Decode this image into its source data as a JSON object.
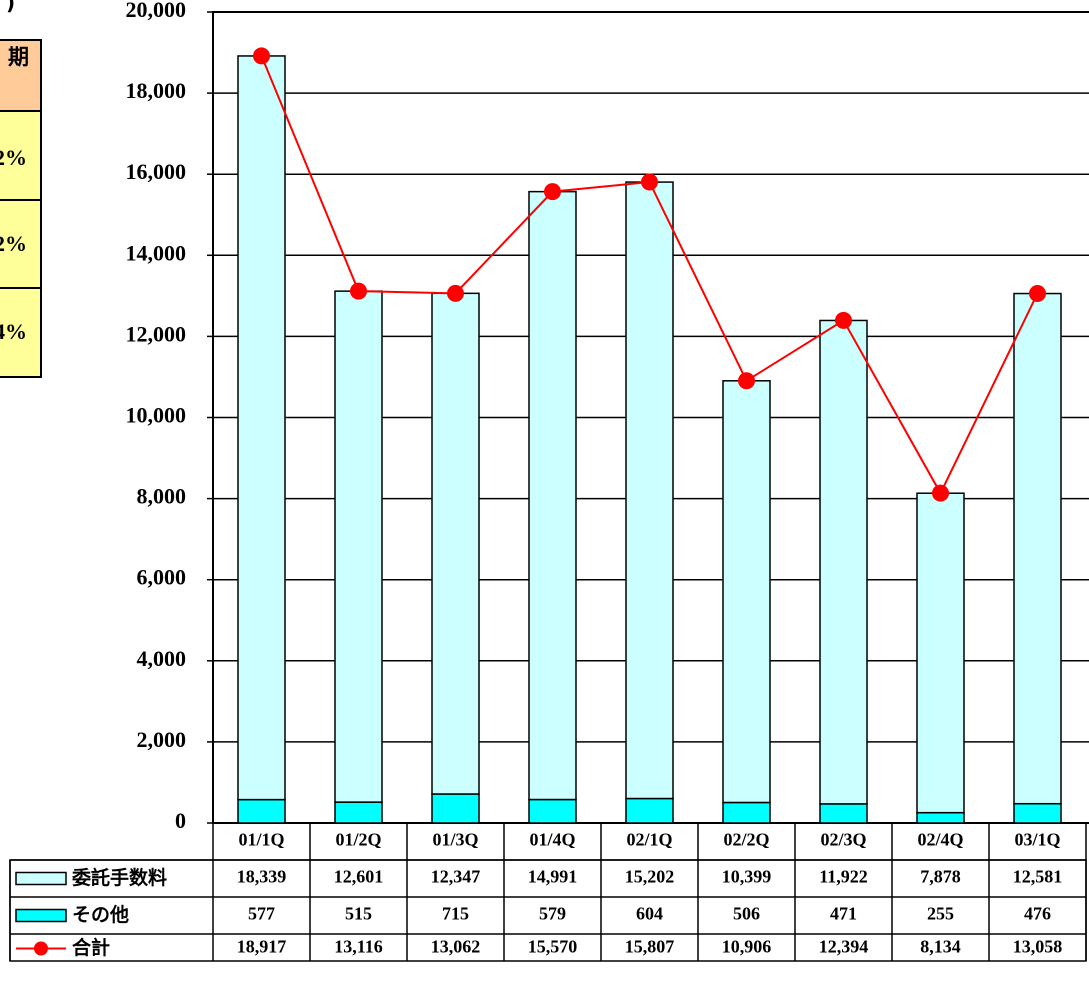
{
  "side_panel": {
    "unit": ")",
    "header": "期",
    "cells": [
      "2%",
      "2%",
      "4%"
    ]
  },
  "chart_data": {
    "type": "stacked_bar_line",
    "categories": [
      "01/1Q",
      "01/2Q",
      "01/3Q",
      "01/4Q",
      "02/1Q",
      "02/2Q",
      "02/3Q",
      "02/4Q",
      "03/1Q"
    ],
    "series": [
      {
        "name": "委託手数料",
        "color": "#ccffff",
        "kind": "bar",
        "values": [
          18339,
          12601,
          12347,
          14991,
          15202,
          10399,
          11922,
          7878,
          12581
        ],
        "value_labels": [
          "18,339",
          "12,601",
          "12,347",
          "14,991",
          "15,202",
          "10,399",
          "11,922",
          "7,878",
          "12,581"
        ]
      },
      {
        "name": "その他",
        "color": "#00ffff",
        "kind": "bar",
        "values": [
          577,
          515,
          715,
          579,
          604,
          506,
          471,
          255,
          476
        ]
      },
      {
        "name": "合計",
        "color": "#ff0000",
        "kind": "line",
        "values": [
          18917,
          13116,
          13062,
          15570,
          15807,
          10906,
          12394,
          8134,
          13058
        ],
        "value_labels": [
          "18,917",
          "13,116",
          "13,062",
          "15,570",
          "15,807",
          "10,906",
          "12,394",
          "8,134",
          "13,058"
        ]
      }
    ],
    "ylim": [
      0,
      20000
    ],
    "yticks": [
      0,
      {
        "value": 2000,
        "label": "2,000"
      },
      {
        "value": 4000,
        "label": "4,000"
      },
      {
        "value": 6000,
        "label": "6,000"
      },
      {
        "value": 8000,
        "label": "8,000"
      },
      {
        "value": 10000,
        "label": "10,000"
      },
      {
        "value": 12000,
        "label": "12,000"
      },
      {
        "value": 14000,
        "label": "14,000"
      },
      {
        "value": 16000,
        "label": "16,000"
      },
      {
        "value": 18000,
        "label": "18,000"
      },
      {
        "value": 20000,
        "label": "20,000"
      }
    ],
    "grid": true
  }
}
